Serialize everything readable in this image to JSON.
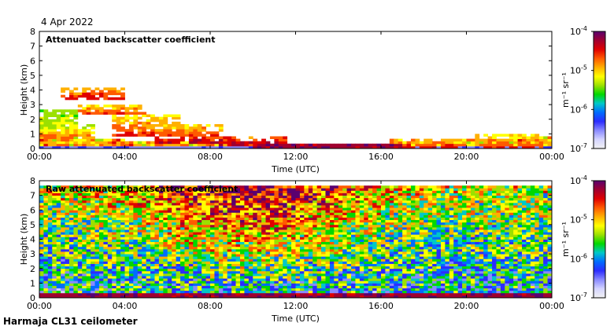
{
  "date_text": "4 Apr 2022",
  "footer_text": "Harmaja CL31 ceilometer",
  "colorbar_unit": "m⁻¹ sr⁻¹",
  "colormap": [
    "#f2f2f2",
    "#d4d4ff",
    "#8a8aff",
    "#2c2cff",
    "#006cff",
    "#00c8c8",
    "#00d800",
    "#9be000",
    "#ffff00",
    "#ffb000",
    "#ff5a00",
    "#e00000",
    "#a00030",
    "#5a0070"
  ],
  "chart_data": [
    {
      "type": "heatmap",
      "title": "Attenuated backscatter coefficient",
      "xlabel": "Time (UTC)",
      "ylabel": "Height (km)",
      "xlim": [
        0,
        24
      ],
      "ylim": [
        0,
        8
      ],
      "xticks": [
        "00:00",
        "04:00",
        "08:00",
        "12:00",
        "16:00",
        "20:00",
        "00:00"
      ],
      "yticks": [
        "0",
        "1",
        "2",
        "3",
        "4",
        "5",
        "6",
        "7",
        "8"
      ],
      "colorbar": {
        "scale": "log",
        "range": [
          1e-07,
          0.0001
        ],
        "ticks": [
          "10",
          "10",
          "10",
          "10"
        ],
        "exponents": [
          "-7",
          "-6",
          "-5",
          "-4"
        ]
      },
      "cloud_layers": [
        {
          "t": 0.25,
          "base_km": 0.8,
          "top_km": 2.6,
          "level": 0.65
        },
        {
          "t": 1.0,
          "base_km": 0.7,
          "top_km": 1.6,
          "level": 0.7
        },
        {
          "t": 2.5,
          "base_km": 3.3,
          "top_km": 4.2,
          "level": 0.8
        },
        {
          "t": 3.5,
          "base_km": 2.3,
          "top_km": 3.0,
          "level": 0.75
        },
        {
          "t": 5.0,
          "base_km": 0.9,
          "top_km": 2.4,
          "level": 0.75
        },
        {
          "t": 7.0,
          "base_km": 0.4,
          "top_km": 1.6,
          "level": 0.8
        },
        {
          "t": 10.0,
          "base_km": 0.2,
          "top_km": 0.9,
          "level": 0.85
        },
        {
          "t": 14.0,
          "base_km": 0.1,
          "top_km": 0.4,
          "level": 0.9
        },
        {
          "t": 18.0,
          "base_km": 0.0,
          "top_km": 0.7,
          "level": 0.8
        },
        {
          "t": 22.0,
          "base_km": 0.0,
          "top_km": 1.0,
          "level": 0.75
        }
      ]
    },
    {
      "type": "heatmap",
      "title": "Raw attenuated backscatter coefficient",
      "xlabel": "Time (UTC)",
      "ylabel": "Height (km)",
      "xlim": [
        0,
        24
      ],
      "ylim": [
        0,
        8
      ],
      "xticks": [
        "00:00",
        "04:00",
        "08:00",
        "12:00",
        "16:00",
        "20:00",
        "00:00"
      ],
      "yticks": [
        "0",
        "1",
        "2",
        "3",
        "4",
        "5",
        "6",
        "7",
        "8"
      ],
      "colorbar": {
        "scale": "log",
        "range": [
          1e-07,
          0.0001
        ],
        "ticks": [
          "10",
          "10",
          "10",
          "10"
        ],
        "exponents": [
          "-7",
          "-6",
          "-5",
          "-4"
        ]
      }
    }
  ]
}
